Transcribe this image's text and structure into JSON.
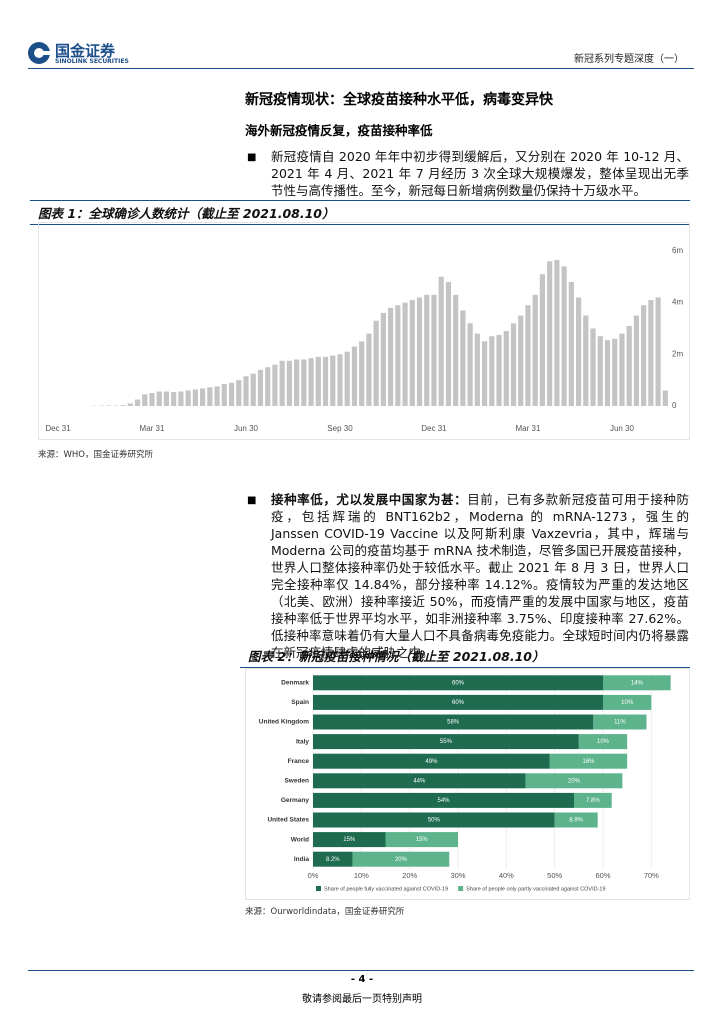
{
  "header": {
    "logo_cn": "国金证券",
    "logo_en": "SINOLINK SECURITIES",
    "series_title": "新冠系列专题深度（一）"
  },
  "section_title": "新冠疫情现状：全球疫苗接种水平低，病毒变异快",
  "subsection_title": "海外新冠疫情反复，疫苗接种率低",
  "paragraphs": [
    {
      "text": "新冠疫情自 2020 年年中初步得到缓解后，又分别在 2020 年 10-12 月、2021 年 4 月、2021 年 7 月经历 3 次全球大规模爆发，整体呈现出无季节性与高传播性。至今，新冠每日新增病例数量仍保持十万级水平。"
    },
    {
      "lead": "接种率低，尤以发展中国家为甚：",
      "text": "目前，已有多款新冠疫苗可用于接种防疫，包括辉瑞的 BNT162b2，Moderna 的 mRNA-1273，强生的 Janssen COVID-19 Vaccine 以及阿斯利康 Vaxzevria，其中，辉瑞与 Moderna 公司的疫苗均基于 mRNA 技术制造，尽管多国已开展疫苗接种，世界人口整体接种率仍处于较低水平。截止 2021 年 8 月 3 日，世界人口完全接种率仅 14.84%，部分接种率 14.12%。疫情较为严重的发达地区（北美、欧洲）接种率接近 50%，而疫情严重的发展中国家与地区，疫苗接种率低于世界平均水平，如非洲接种率 3.75%、印度接种率 27.62%。低接种率意味着仍有大量人口不具备病毒免疫能力。全球短时间内仍将暴露在新冠疫情肆虐的威胁之中。"
    }
  ],
  "chart_data": [
    {
      "type": "bar",
      "title": "图表 1：全球确诊人数统计（截止至 2021.08.10）",
      "source": "来源：WHO，国金证券研究所",
      "color": "#c4c4c4",
      "categories": [
        "Dec 31",
        null,
        null,
        null,
        null,
        null,
        null,
        null,
        null,
        null,
        null,
        null,
        null,
        "Mar 31",
        null,
        null,
        null,
        null,
        null,
        null,
        null,
        null,
        null,
        null,
        null,
        null,
        "Jun 30",
        null,
        null,
        null,
        null,
        null,
        null,
        null,
        null,
        null,
        null,
        null,
        null,
        "Sep 30",
        null,
        null,
        null,
        null,
        null,
        null,
        null,
        null,
        null,
        null,
        null,
        null,
        "Dec 31",
        null,
        null,
        null,
        null,
        null,
        null,
        null,
        null,
        null,
        null,
        null,
        null,
        "Mar 31",
        null,
        null,
        null,
        null,
        null,
        null,
        null,
        null,
        null,
        null,
        null,
        null,
        "Jun 30",
        null,
        null,
        null,
        null,
        null,
        null
      ],
      "values": [
        0,
        0,
        0,
        0,
        0,
        10000,
        15000,
        20000,
        15000,
        30000,
        100000,
        250000,
        450000,
        500000,
        560000,
        560000,
        540000,
        560000,
        600000,
        640000,
        680000,
        720000,
        760000,
        850000,
        900000,
        1000000,
        1150000,
        1250000,
        1400000,
        1500000,
        1600000,
        1750000,
        1750000,
        1800000,
        1800000,
        1850000,
        1900000,
        1900000,
        1950000,
        2000000,
        2100000,
        2300000,
        2500000,
        2800000,
        3300000,
        3600000,
        3800000,
        3900000,
        4000000,
        4100000,
        4200000,
        4300000,
        4300000,
        5000000,
        4800000,
        4300000,
        3700000,
        3200000,
        2800000,
        2500000,
        2700000,
        2750000,
        2900000,
        3200000,
        3500000,
        3900000,
        4300000,
        5100000,
        5600000,
        5650000,
        5400000,
        4800000,
        4200000,
        3500000,
        3000000,
        2700000,
        2550000,
        2600000,
        2800000,
        3100000,
        3500000,
        3900000,
        4100000,
        4200000,
        600000
      ],
      "ylim": [
        0,
        6500000
      ],
      "yticks": [
        0,
        {
          "value": 2000000,
          "label": "2m"
        },
        {
          "value": 4000000,
          "label": "4m"
        },
        {
          "value": 6000000,
          "label": "6m"
        }
      ],
      "grid": false
    },
    {
      "type": "barh",
      "title": "图表 2：新冠疫苗接种情况（截止至 2021.08.10）",
      "source": "来源：Ourworldindata，国金证券研究所",
      "categories": [
        "Denmark",
        "Spain",
        "United Kingdom",
        "Italy",
        "France",
        "Sweden",
        "Germany",
        "United States",
        "World",
        "India"
      ],
      "series": [
        {
          "name": "Share of people fully vaccinated against COVID-19",
          "color": "#1e6b4f",
          "values": [
            60,
            60,
            58,
            55,
            49,
            44,
            54,
            50,
            15,
            8.2
          ],
          "value_labels": [
            "60%",
            "60%",
            "58%",
            "55%",
            "49%",
            "44%",
            "54%",
            "50%",
            "15%",
            "8.2%"
          ]
        },
        {
          "name": "Share of people only partly vaccinated against COVID-19",
          "color": "#5db38c",
          "values": [
            14,
            10,
            11,
            10,
            16,
            20,
            7.8,
            8.9,
            15,
            20
          ],
          "value_labels": [
            "14%",
            "10%",
            "11%",
            "10%",
            "16%",
            "20%",
            "7.8%",
            "8.9%",
            "15%",
            "20%"
          ]
        }
      ],
      "xlim": [
        0,
        78
      ],
      "xticks": [
        {
          "value": 0,
          "label": "0%"
        },
        {
          "value": 10,
          "label": "10%"
        },
        {
          "value": 20,
          "label": "20%"
        },
        {
          "value": 30,
          "label": "30%"
        },
        {
          "value": 40,
          "label": "40%"
        },
        {
          "value": 50,
          "label": "50%"
        },
        {
          "value": 60,
          "label": "60%"
        },
        {
          "value": 70,
          "label": "70%"
        }
      ],
      "grid": true
    }
  ],
  "footer": {
    "page": "- 4 -",
    "disclaimer": "敬请参阅最后一页特别声明"
  }
}
